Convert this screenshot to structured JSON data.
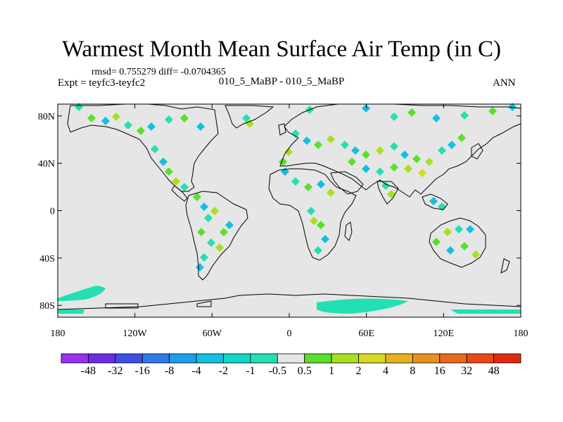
{
  "title": "Warmest Month Mean Surface Air Temp (in C)",
  "stats_line": "rmsd= 0.755279 diff= -0.0704365",
  "experiment": "Expt = teyfc3-teyfc2",
  "center_label": "010_5_MaBP - 010_5_MaBP",
  "season": "ANN",
  "colors": {
    "background_field": "#e6e6e6",
    "coastline": "#000000"
  },
  "chart_data": {
    "type": "heatmap",
    "projection": "cylindrical equidistant",
    "x_ticks": [
      "180",
      "120W",
      "60W",
      "0",
      "60E",
      "120E",
      "180"
    ],
    "y_ticks": [
      "80N",
      "40N",
      "0",
      "40S",
      "80S"
    ],
    "xlim": [
      -180,
      180
    ],
    "ylim": [
      -90,
      90
    ],
    "colorbar": {
      "labels": [
        "-48",
        "-32",
        "-16",
        "-8",
        "-4",
        "-2",
        "-1",
        "-0.5",
        "0.5",
        "1",
        "2",
        "4",
        "8",
        "16",
        "32",
        "48"
      ],
      "colors": [
        "#9b30f0",
        "#6a2ee0",
        "#3b4fe0",
        "#2f7ae8",
        "#1ca0e8",
        "#12c0e0",
        "#12d6c6",
        "#22e0b2",
        "#e6e6e6",
        "#58e02a",
        "#a8e020",
        "#d8d820",
        "#e8b020",
        "#e89020",
        "#e86a20",
        "#e84818",
        "#e02a10"
      ]
    }
  }
}
